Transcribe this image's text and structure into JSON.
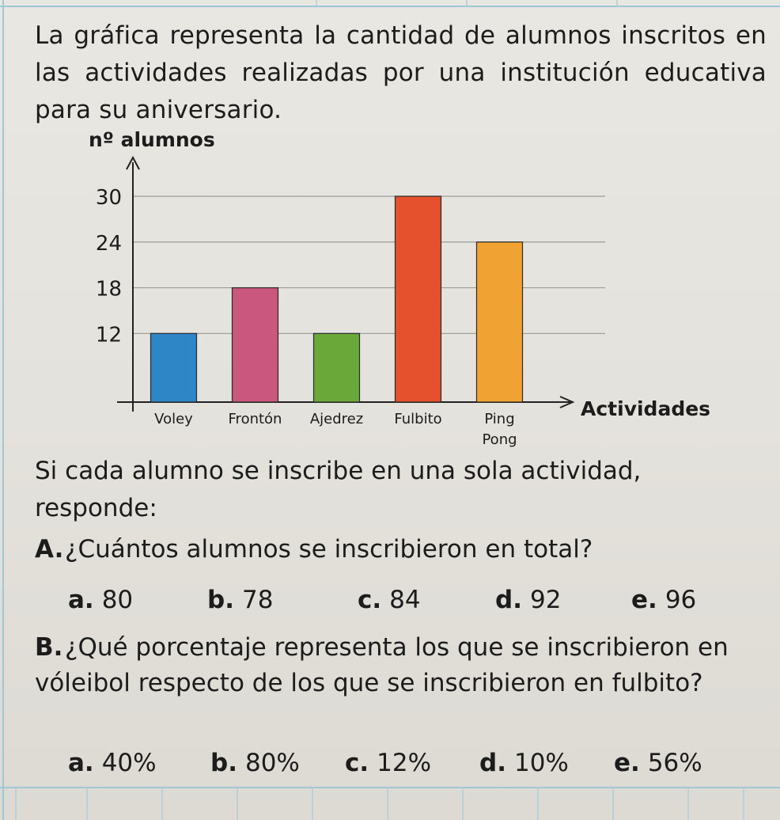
{
  "intro": "La gráfica representa la cantidad de alumnos inscritos en las actividades realizadas por una institución educativa para su aniversario.",
  "chart_data": {
    "type": "bar",
    "ylabel": "nº alumnos",
    "xlabel": "Actividades",
    "categories": [
      "Voley",
      "Frontón",
      "Ajedrez",
      "Fulbito",
      "Ping Pong"
    ],
    "values": [
      12,
      18,
      12,
      30,
      24
    ],
    "colors": [
      "#2f86c6",
      "#c9577e",
      "#6aa83a",
      "#e5512d",
      "#f0a233"
    ],
    "yticks": [
      12,
      18,
      24,
      30
    ],
    "ylim": [
      3,
      30
    ],
    "grid": true
  },
  "prompt": "Si cada alumno se inscribe en una sola actividad, responde:",
  "questions": [
    {
      "letter": "A.",
      "text": "¿Cuántos alumnos se inscribieron en total?",
      "options": [
        {
          "letter": "a.",
          "value": "80"
        },
        {
          "letter": "b.",
          "value": "78"
        },
        {
          "letter": "c.",
          "value": "84"
        },
        {
          "letter": "d.",
          "value": "92"
        },
        {
          "letter": "e.",
          "value": "96"
        }
      ]
    },
    {
      "letter": "B.",
      "text": "¿Qué porcentaje representa los que se inscribieron en vóleibol respecto de los que se inscribieron en fulbito?",
      "options": [
        {
          "letter": "a.",
          "value": "40%"
        },
        {
          "letter": "b.",
          "value": "80%"
        },
        {
          "letter": "c.",
          "value": "12%"
        },
        {
          "letter": "d.",
          "value": "10%"
        },
        {
          "letter": "e.",
          "value": "56%"
        }
      ]
    }
  ]
}
